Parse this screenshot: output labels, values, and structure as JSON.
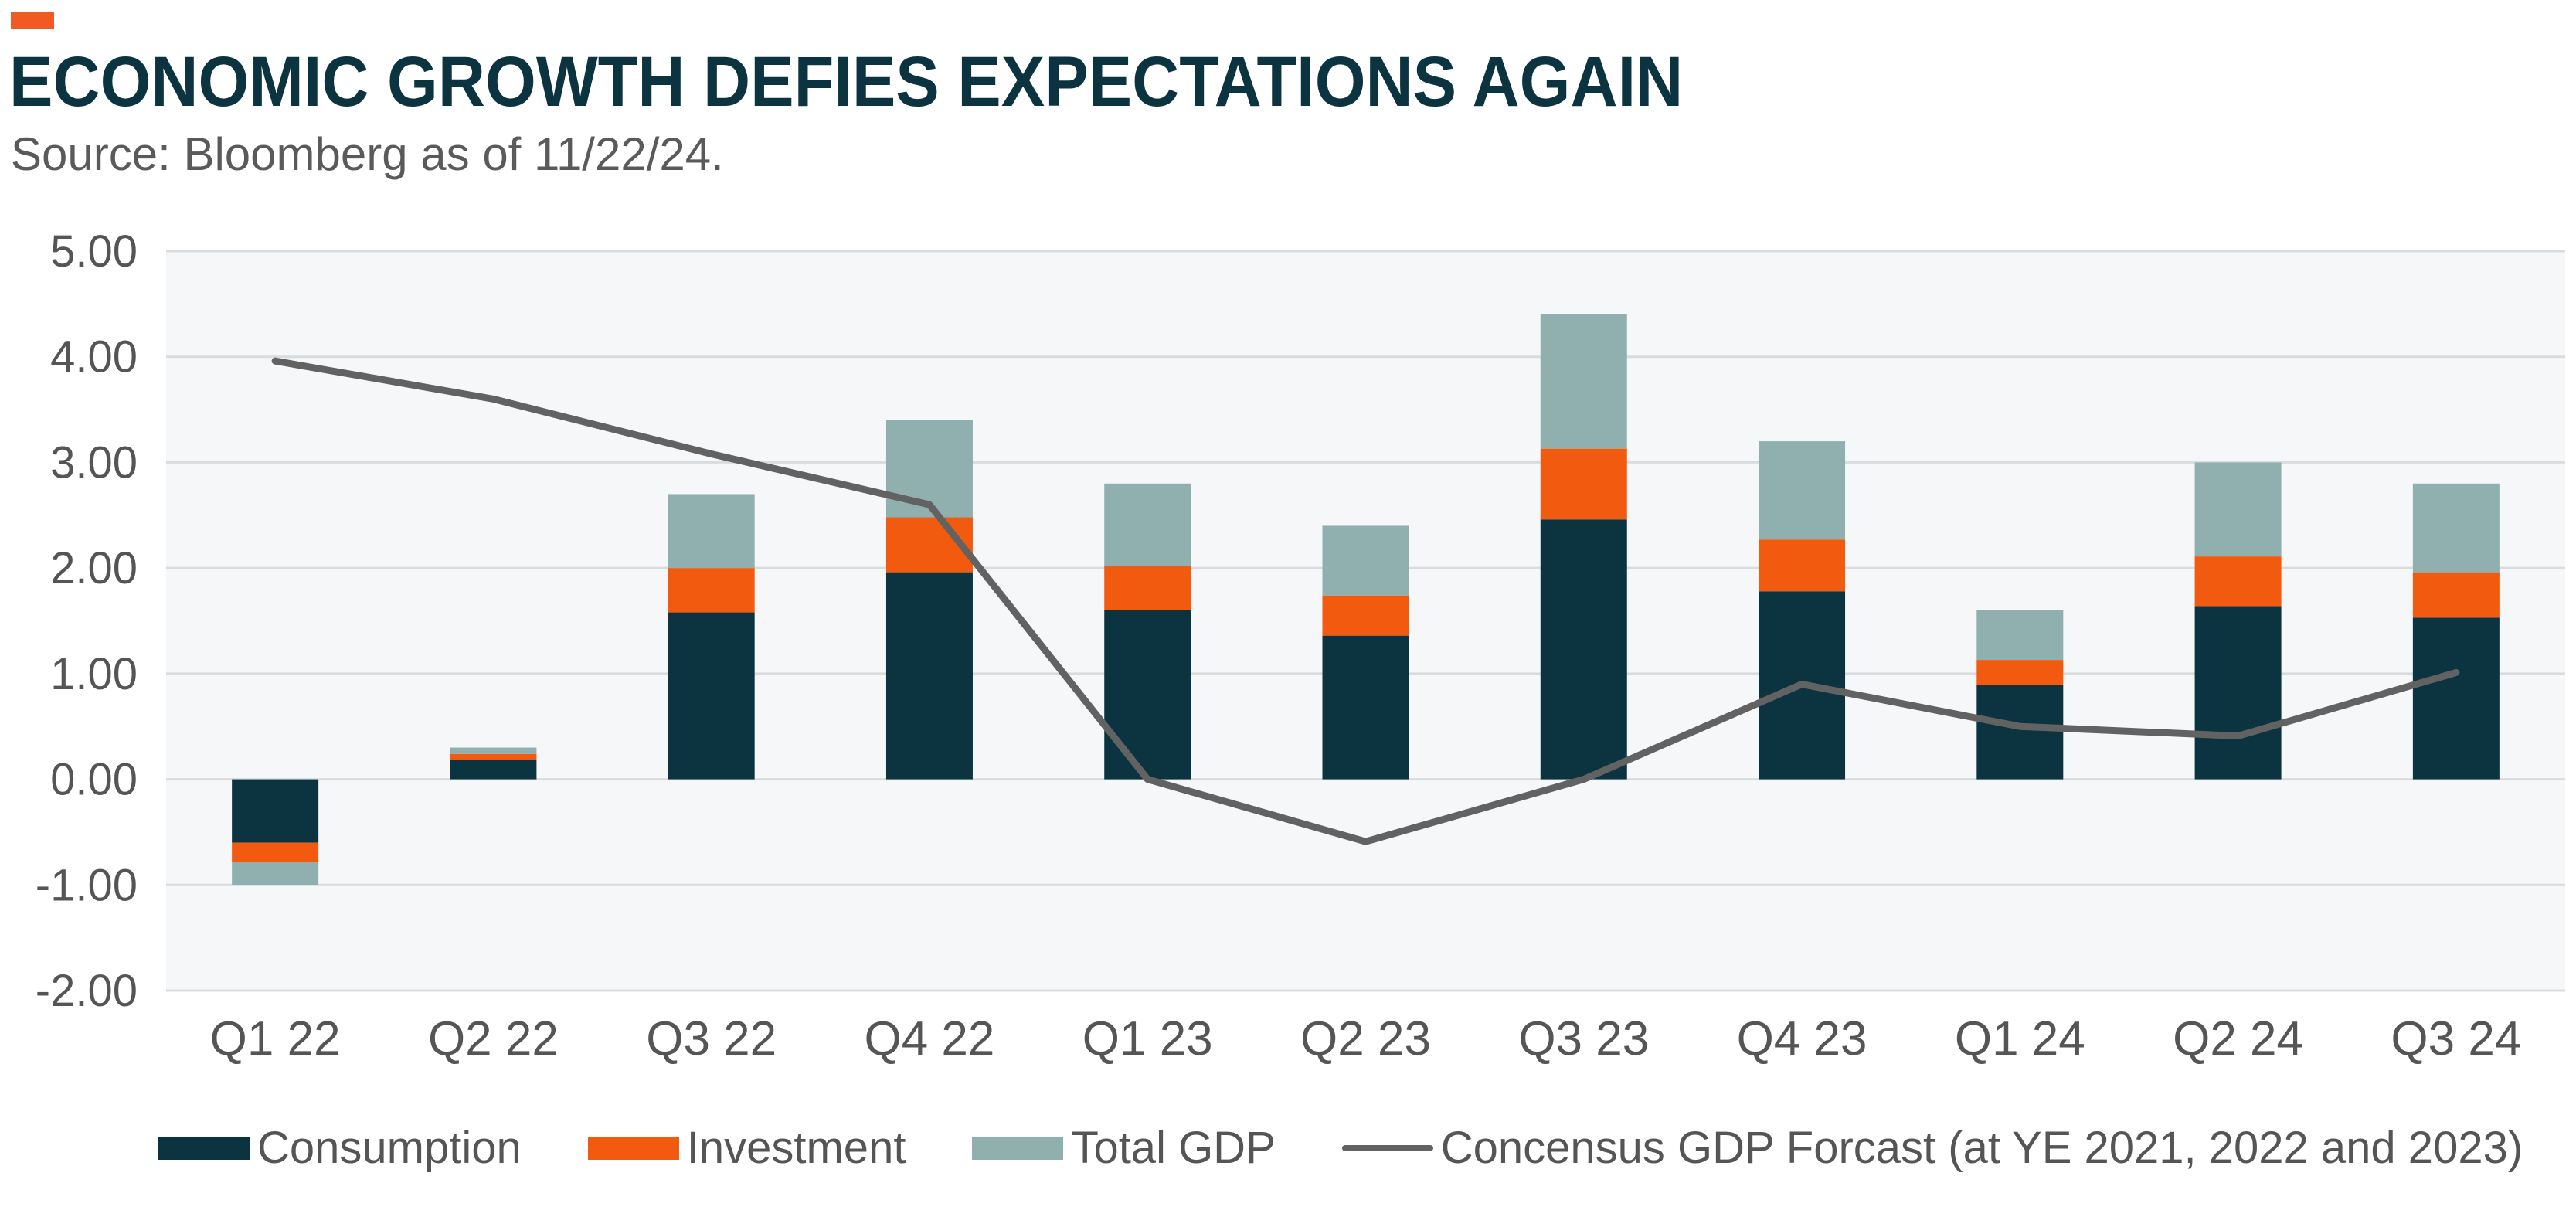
{
  "header": {
    "title": "ECONOMIC GROWTH DEFIES EXPECTATIONS AGAIN",
    "subtitle": "Source: Bloomberg as of 11/22/24."
  },
  "colors": {
    "accent": "#f15a22",
    "consumption": "#0b3440",
    "investment": "#f15a0f",
    "total_gdp": "#8fb0ae",
    "forecast_line": "#626262",
    "plot_background": "#f6f7f9",
    "gridline": "#d9dcdf"
  },
  "chart_data": {
    "type": "bar",
    "stacked": true,
    "categories": [
      "Q1 22",
      "Q2 22",
      "Q3 22",
      "Q4 22",
      "Q1 23",
      "Q2 23",
      "Q3 23",
      "Q4 23",
      "Q1 24",
      "Q2 24",
      "Q3 24"
    ],
    "ylim": [
      -2,
      5
    ],
    "yticks": [
      "-2.00",
      "-1.00",
      "0.00",
      "1.00",
      "2.00",
      "3.00",
      "4.00",
      "5.00"
    ],
    "grid": true,
    "legend_position": "bottom",
    "series": [
      {
        "name": "Consumption",
        "type": "bar",
        "color": "#0b3440",
        "segments": [
          [
            0,
            -0.6
          ],
          [
            0,
            0.18
          ],
          [
            0,
            1.58
          ],
          [
            0,
            1.96
          ],
          [
            0,
            1.6
          ],
          [
            0,
            1.36
          ],
          [
            0,
            2.46
          ],
          [
            0,
            1.78
          ],
          [
            0,
            0.89
          ],
          [
            0,
            1.64
          ],
          [
            0,
            1.53
          ]
        ]
      },
      {
        "name": "Investment",
        "type": "bar",
        "color": "#f15a0f",
        "segments": [
          [
            -0.6,
            -0.78
          ],
          [
            0.18,
            0.24
          ],
          [
            1.58,
            2.0
          ],
          [
            1.96,
            2.48
          ],
          [
            1.6,
            2.02
          ],
          [
            1.36,
            1.74
          ],
          [
            2.46,
            3.13
          ],
          [
            1.78,
            2.27
          ],
          [
            0.89,
            1.13
          ],
          [
            1.64,
            2.11
          ],
          [
            1.53,
            1.96
          ]
        ]
      },
      {
        "name": "Total GDP",
        "type": "bar",
        "color": "#8fb0ae",
        "segments": [
          [
            -0.78,
            -1.0
          ],
          [
            0.24,
            0.3
          ],
          [
            2.0,
            2.7
          ],
          [
            2.48,
            3.4
          ],
          [
            2.02,
            2.8
          ],
          [
            1.74,
            2.4
          ],
          [
            3.13,
            4.4
          ],
          [
            2.27,
            3.2
          ],
          [
            1.13,
            1.6
          ],
          [
            2.11,
            3.0
          ],
          [
            1.96,
            2.8
          ]
        ],
        "values": [
          -1.0,
          0.3,
          2.7,
          3.4,
          2.8,
          2.4,
          4.4,
          3.2,
          1.6,
          3.0,
          2.8
        ]
      },
      {
        "name": "Concensus GDP Forcast (at YE 2021, 2022 and 2023)",
        "type": "line",
        "color": "#626262",
        "values": [
          3.96,
          3.6,
          3.08,
          2.6,
          0.0,
          -0.59,
          0.0,
          0.9,
          0.5,
          0.41,
          1.01
        ]
      }
    ]
  },
  "legend": {
    "items": [
      {
        "label": "Consumption",
        "color": "#0b3440",
        "kind": "box"
      },
      {
        "label": "Investment",
        "color": "#f15a0f",
        "kind": "box"
      },
      {
        "label": "Total GDP",
        "color": "#8fb0ae",
        "kind": "box"
      },
      {
        "label": "Concensus GDP Forcast (at YE 2021, 2022 and 2023)",
        "color": "#626262",
        "kind": "line"
      }
    ]
  }
}
